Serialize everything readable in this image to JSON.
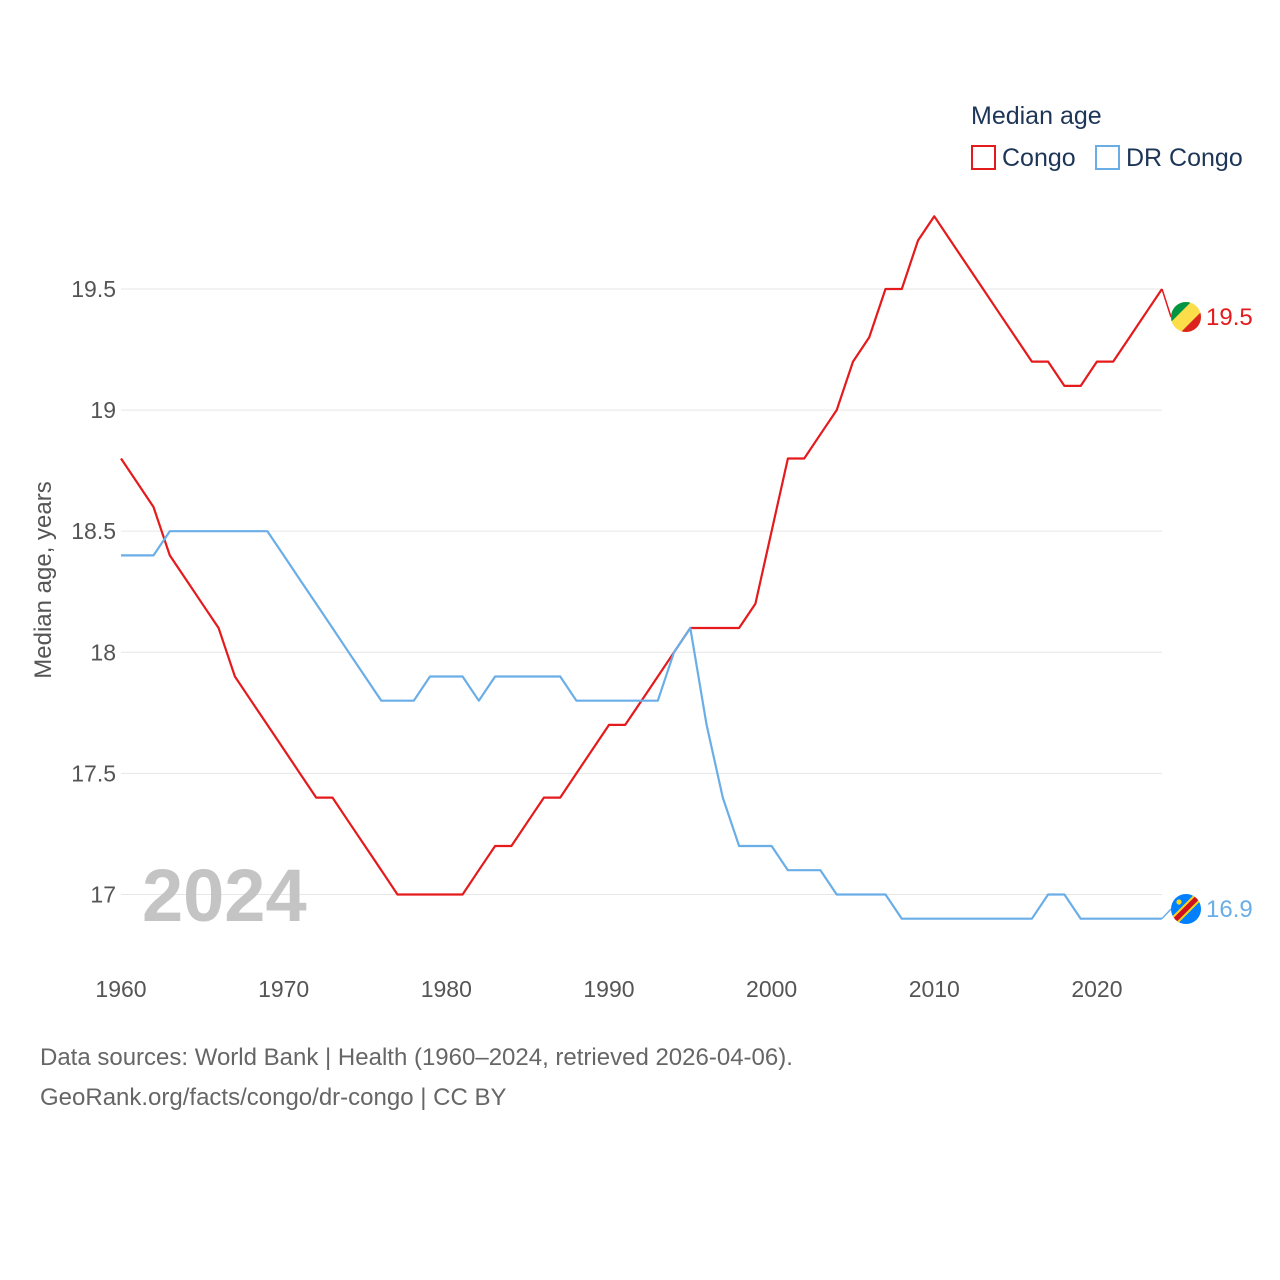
{
  "chart_data": {
    "type": "line",
    "ylabel": "Median age, years",
    "xlim": [
      1960,
      2024
    ],
    "ylim": [
      16.75,
      19.95
    ],
    "y_ticks": [
      17,
      17.5,
      18,
      18.5,
      19,
      19.5
    ],
    "y_tick_labels": [
      "17",
      "17.5",
      "18",
      "18.5",
      "19",
      "19.5"
    ],
    "x_ticks": [
      1960,
      1970,
      1980,
      1990,
      2000,
      2010,
      2020
    ],
    "x_tick_labels": [
      "1960",
      "1970",
      "1980",
      "1990",
      "2000",
      "2010",
      "2020"
    ],
    "grid": "horizontal",
    "legend": {
      "title": "Median age",
      "placement": "top-right"
    },
    "year_label": "2024",
    "x": [
      1960,
      1961,
      1962,
      1963,
      1964,
      1965,
      1966,
      1967,
      1968,
      1969,
      1970,
      1971,
      1972,
      1973,
      1974,
      1975,
      1976,
      1977,
      1978,
      1979,
      1980,
      1981,
      1982,
      1983,
      1984,
      1985,
      1986,
      1987,
      1988,
      1989,
      1990,
      1991,
      1992,
      1993,
      1994,
      1995,
      1996,
      1997,
      1998,
      1999,
      2000,
      2001,
      2002,
      2003,
      2004,
      2005,
      2006,
      2007,
      2008,
      2009,
      2010,
      2011,
      2012,
      2013,
      2014,
      2015,
      2016,
      2017,
      2018,
      2019,
      2020,
      2021,
      2022,
      2023,
      2024
    ],
    "series": [
      {
        "name": "Congo",
        "color": "#e41a1c",
        "end_label": "19.5",
        "flag_colors": [
          "#009543",
          "#fbde4a",
          "#dc241f"
        ],
        "values": [
          18.8,
          18.7,
          18.6,
          18.4,
          18.3,
          18.2,
          18.1,
          17.9,
          17.8,
          17.7,
          17.6,
          17.5,
          17.4,
          17.4,
          17.3,
          17.2,
          17.1,
          17.0,
          17.0,
          17.0,
          17.0,
          17.0,
          17.1,
          17.2,
          17.2,
          17.3,
          17.4,
          17.4,
          17.5,
          17.6,
          17.7,
          17.7,
          17.8,
          17.9,
          18.0,
          18.1,
          18.1,
          18.1,
          18.1,
          18.2,
          18.5,
          18.8,
          18.8,
          18.9,
          19.0,
          19.2,
          19.3,
          19.5,
          19.5,
          19.7,
          19.8,
          19.7,
          19.6,
          19.5,
          19.4,
          19.3,
          19.2,
          19.2,
          19.1,
          19.1,
          19.2,
          19.2,
          19.3,
          19.4,
          19.5
        ]
      },
      {
        "name": "DR Congo",
        "color": "#6aaee8",
        "end_label": "16.9",
        "flag_colors": [
          "#007fff",
          "#f7d618",
          "#ce1021"
        ],
        "values": [
          18.4,
          18.4,
          18.4,
          18.5,
          18.5,
          18.5,
          18.5,
          18.5,
          18.5,
          18.5,
          18.4,
          18.3,
          18.2,
          18.1,
          18.0,
          17.9,
          17.8,
          17.8,
          17.8,
          17.9,
          17.9,
          17.9,
          17.8,
          17.9,
          17.9,
          17.9,
          17.9,
          17.9,
          17.8,
          17.8,
          17.8,
          17.8,
          17.8,
          17.8,
          18.0,
          18.1,
          17.7,
          17.4,
          17.2,
          17.2,
          17.2,
          17.1,
          17.1,
          17.1,
          17.0,
          17.0,
          17.0,
          17.0,
          16.9,
          16.9,
          16.9,
          16.9,
          16.9,
          16.9,
          16.9,
          16.9,
          16.9,
          17.0,
          17.0,
          16.9,
          16.9,
          16.9,
          16.9,
          16.9,
          16.9
        ]
      }
    ]
  },
  "footer": {
    "line1": "Data sources: World Bank | Health (1960–2024, retrieved 2026-04-06).",
    "line2": "GeoRank.org/facts/congo/dr-congo | CC BY"
  }
}
